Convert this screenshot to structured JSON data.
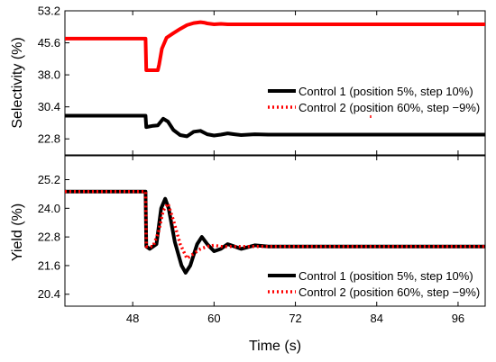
{
  "chart_data": [
    {
      "type": "line",
      "panel": "top",
      "ylabel": "Selectivity (%)",
      "ylim": [
        19.0,
        53.2
      ],
      "yticks": [
        "22.8",
        "30.4",
        "38.0",
        "45.6",
        "53.2"
      ],
      "xlim": [
        38,
        100
      ],
      "series": [
        {
          "color": "#ff0000",
          "style": "solid",
          "x": [
            38,
            49.9,
            50.0,
            51.7,
            51.9,
            52.3,
            53.0,
            54.0,
            55.0,
            56.0,
            57.0,
            58.0,
            58.5,
            59.0,
            60.0,
            61.0,
            62.0,
            65.0,
            70.0,
            80.0,
            90.0,
            100.0
          ],
          "y": [
            46.6,
            46.6,
            39.1,
            39.1,
            40.5,
            44.2,
            46.8,
            47.9,
            48.9,
            49.8,
            50.3,
            50.5,
            50.4,
            50.2,
            50.0,
            50.1,
            50.0,
            50.0,
            50.0,
            50.0,
            50.0,
            50.0
          ]
        },
        {
          "color": "#000000",
          "style": "solid",
          "x": [
            38,
            49.9,
            50.0,
            51.0,
            51.7,
            52.5,
            53.2,
            54.0,
            55.0,
            56.0,
            57.0,
            58.0,
            59.0,
            60.0,
            61.0,
            62.0,
            63.0,
            64.0,
            66.0,
            68.0,
            70.0,
            80.0,
            90.0,
            100.0
          ],
          "y": [
            28.3,
            28.3,
            25.6,
            25.9,
            26.0,
            27.6,
            26.9,
            24.9,
            23.7,
            23.4,
            24.5,
            24.7,
            23.9,
            23.6,
            23.8,
            24.1,
            23.9,
            23.7,
            23.9,
            23.8,
            23.8,
            23.8,
            23.8,
            23.8
          ]
        }
      ],
      "legend_entries": [
        "Control 1 (position 5%, step 10%)",
        "Control 2 (position 60%, step −9%)"
      ]
    },
    {
      "type": "line",
      "panel": "bottom",
      "ylabel": "Yield (%)",
      "xlabel": "Time (s)",
      "ylim": [
        19.9,
        26.2
      ],
      "yticks": [
        "20.4",
        "21.6",
        "22.8",
        "24.0",
        "25.2"
      ],
      "xlim": [
        38,
        100
      ],
      "xticks": [
        "48",
        "60",
        "72",
        "84",
        "96"
      ],
      "series": [
        {
          "name": "Control 1 (position 5%, step 10%)",
          "color": "#000000",
          "style": "solid",
          "x": [
            38,
            49.9,
            50.0,
            50.5,
            51.5,
            52.2,
            52.8,
            53.3,
            54.2,
            55.2,
            55.8,
            56.5,
            57.5,
            58.2,
            59.0,
            60.0,
            61.0,
            62.0,
            63.0,
            64.0,
            66.0,
            68.0,
            70.0,
            80.0,
            100.0
          ],
          "y": [
            24.7,
            24.7,
            22.4,
            22.3,
            22.5,
            24.0,
            24.4,
            24.0,
            22.6,
            21.6,
            21.3,
            21.6,
            22.5,
            22.8,
            22.5,
            22.2,
            22.3,
            22.5,
            22.4,
            22.3,
            22.45,
            22.4,
            22.4,
            22.4,
            22.4
          ]
        },
        {
          "name": "Control 2 (position 60%, step −9%)",
          "color": "#ff0000",
          "style": "dotted",
          "x": [
            38,
            49.9,
            50.0,
            51.0,
            51.8,
            52.5,
            53.2,
            54.0,
            55.0,
            56.0,
            57.0,
            58.0,
            59.0,
            60.0,
            61.0,
            62.0,
            64.0,
            66.0,
            68.0,
            70.0,
            80.0,
            100.0
          ],
          "y": [
            24.7,
            24.7,
            22.4,
            22.4,
            23.0,
            23.9,
            24.2,
            23.5,
            22.5,
            21.9,
            22.1,
            22.3,
            22.4,
            22.45,
            22.4,
            22.4,
            22.4,
            22.4,
            22.4,
            22.4,
            22.4,
            22.4
          ]
        }
      ],
      "legend_entries": [
        "Control 1 (position 5%, step 10%)",
        "Control 2 (position 60%, step −9%)"
      ]
    }
  ]
}
